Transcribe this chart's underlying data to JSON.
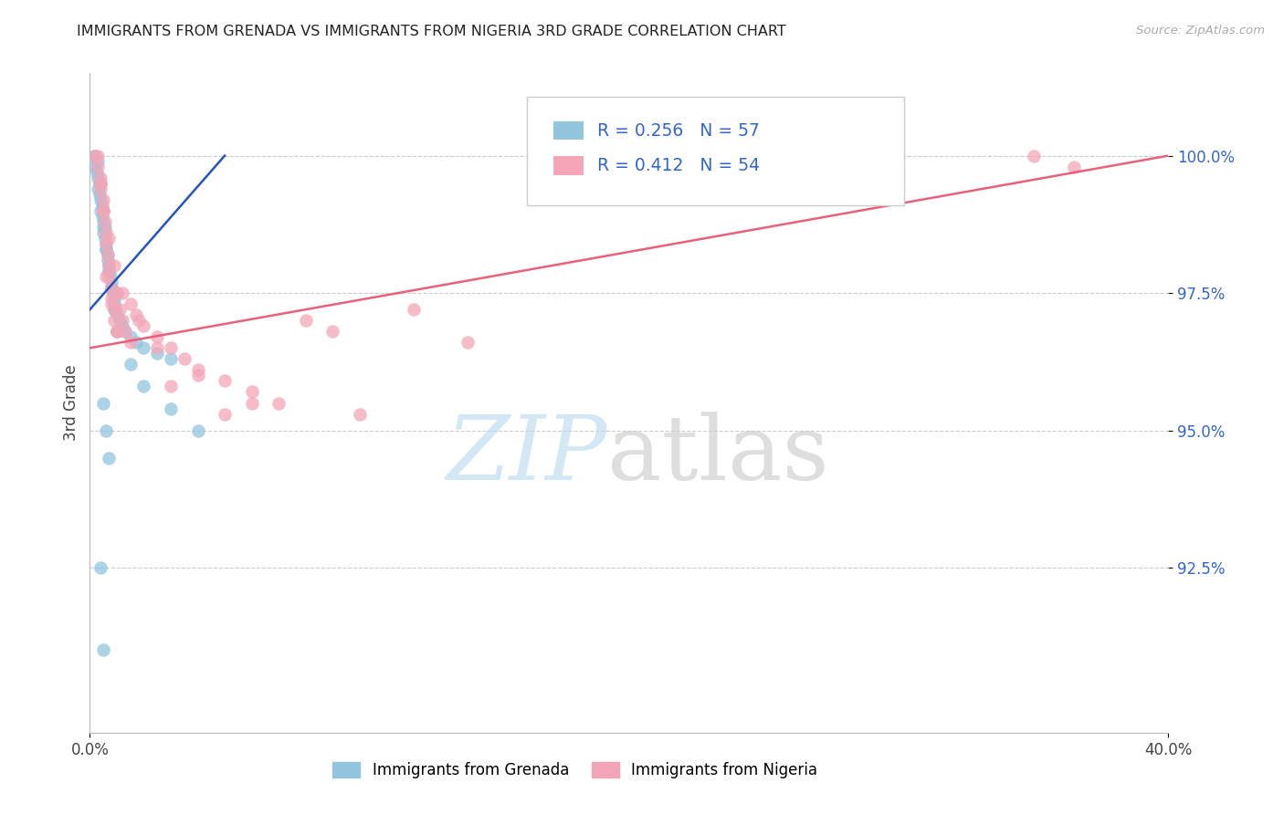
{
  "title": "IMMIGRANTS FROM GRENADA VS IMMIGRANTS FROM NIGERIA 3RD GRADE CORRELATION CHART",
  "source": "Source: ZipAtlas.com",
  "ylabel": "3rd Grade",
  "ytick_values": [
    92.5,
    95.0,
    97.5,
    100.0
  ],
  "ytick_labels": [
    "92.5%",
    "95.0%",
    "97.5%",
    "100.0%"
  ],
  "xlim": [
    0.0,
    40.0
  ],
  "ylim": [
    89.5,
    101.5
  ],
  "legend_label_blue": "Immigrants from Grenada",
  "legend_label_pink": "Immigrants from Nigeria",
  "watermark_zip": "ZIP",
  "watermark_atlas": "atlas",
  "blue_color": "#92c5de",
  "pink_color": "#f4a6b8",
  "blue_line_color": "#2255bb",
  "pink_line_color": "#e8607a",
  "title_color": "#222222",
  "legend_text_color": "#3366cc",
  "source_color": "#aaaaaa",
  "grid_color": "#cccccc",
  "blue_scatter_x": [
    0.15,
    0.2,
    0.2,
    0.25,
    0.3,
    0.3,
    0.35,
    0.35,
    0.4,
    0.4,
    0.45,
    0.45,
    0.5,
    0.5,
    0.5,
    0.55,
    0.55,
    0.6,
    0.6,
    0.65,
    0.65,
    0.7,
    0.7,
    0.75,
    0.8,
    0.8,
    0.85,
    0.9,
    0.9,
    0.95,
    1.0,
    1.0,
    1.1,
    1.2,
    1.3,
    1.5,
    1.7,
    2.0,
    2.5,
    3.0,
    0.3,
    0.4,
    0.5,
    0.6,
    0.7,
    0.8,
    0.9,
    1.0,
    1.5,
    2.0,
    3.0,
    4.0,
    0.5,
    0.6,
    0.7,
    0.4,
    0.5
  ],
  "blue_scatter_y": [
    100.0,
    100.0,
    99.8,
    99.7,
    99.9,
    99.6,
    99.5,
    99.3,
    99.5,
    99.2,
    99.1,
    98.9,
    99.0,
    98.8,
    98.6,
    98.7,
    98.5,
    98.4,
    98.3,
    98.2,
    98.1,
    98.0,
    97.9,
    97.8,
    97.7,
    97.6,
    97.5,
    97.4,
    97.3,
    97.2,
    97.5,
    97.1,
    97.0,
    96.9,
    96.8,
    96.7,
    96.6,
    96.5,
    96.4,
    96.3,
    99.4,
    99.0,
    98.7,
    98.3,
    97.9,
    97.6,
    97.2,
    96.8,
    96.2,
    95.8,
    95.4,
    95.0,
    95.5,
    95.0,
    94.5,
    92.5,
    91.0
  ],
  "pink_scatter_x": [
    0.2,
    0.3,
    0.3,
    0.4,
    0.4,
    0.5,
    0.5,
    0.55,
    0.6,
    0.6,
    0.65,
    0.7,
    0.7,
    0.8,
    0.8,
    0.9,
    0.9,
    1.0,
    1.0,
    1.1,
    1.2,
    1.3,
    1.5,
    1.5,
    1.7,
    2.0,
    2.5,
    3.0,
    3.5,
    4.0,
    5.0,
    6.0,
    7.0,
    8.0,
    9.0,
    10.0,
    12.0,
    14.0,
    0.4,
    0.5,
    0.7,
    0.9,
    1.2,
    1.8,
    2.5,
    4.0,
    6.0,
    0.6,
    0.8,
    1.0,
    3.0,
    5.0,
    35.0,
    36.5
  ],
  "pink_scatter_y": [
    100.0,
    100.0,
    99.8,
    99.6,
    99.4,
    99.2,
    99.0,
    98.8,
    98.6,
    98.4,
    98.2,
    98.0,
    97.8,
    97.6,
    97.4,
    97.2,
    97.0,
    96.8,
    97.5,
    97.2,
    97.0,
    96.8,
    96.6,
    97.3,
    97.1,
    96.9,
    96.7,
    96.5,
    96.3,
    96.1,
    95.9,
    95.7,
    95.5,
    97.0,
    96.8,
    95.3,
    97.2,
    96.6,
    99.5,
    99.0,
    98.5,
    98.0,
    97.5,
    97.0,
    96.5,
    96.0,
    95.5,
    97.8,
    97.3,
    96.8,
    95.8,
    95.3,
    100.0,
    99.8
  ],
  "blue_trendline_x": [
    0.0,
    5.0
  ],
  "blue_trendline_y": [
    97.2,
    100.0
  ],
  "pink_trendline_x": [
    0.0,
    40.0
  ],
  "pink_trendline_y": [
    96.5,
    100.0
  ]
}
